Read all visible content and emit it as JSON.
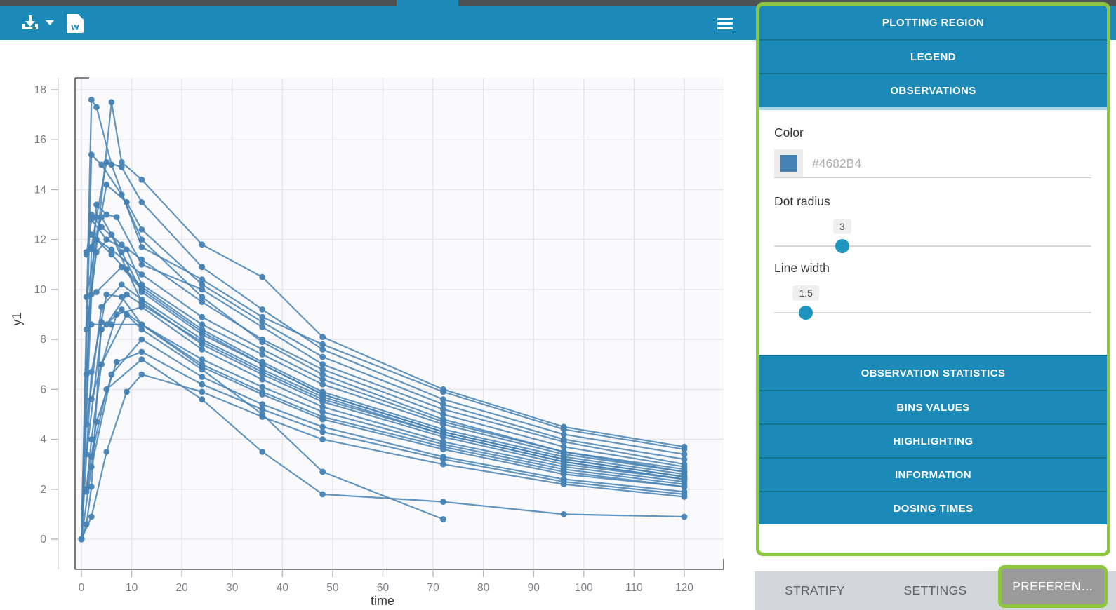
{
  "colors": {
    "accent_teal": "#1b8ab8",
    "header_separator": "#157494",
    "active_header_underline": "#a5d6e8",
    "highlight_green": "#8cc63f",
    "steel_blue": "#4682B4",
    "top_strip_gray": "#4d5154",
    "tabbar_bg": "#d3d6da",
    "selected_tab_bg": "#9b9b9b"
  },
  "toolbar": {
    "icons": [
      "download-icon",
      "caret-down-icon",
      "word-doc-icon",
      "hamburger-menu-icon"
    ],
    "word_icon_letter": "w"
  },
  "sidebar": {
    "accordion_top": [
      {
        "label": "PLOTTING REGION"
      },
      {
        "label": "LEGEND"
      },
      {
        "label": "OBSERVATIONS",
        "active": true
      }
    ],
    "observations": {
      "color_label": "Color",
      "color_placeholder": "#4682B4",
      "color_swatch": "#4682B4",
      "dot_radius_label": "Dot radius",
      "dot_radius_value": "3",
      "dot_radius_min": 0,
      "dot_radius_max": 14,
      "line_width_label": "Line width",
      "line_width_value": "1.5",
      "line_width_min": 0,
      "line_width_max": 15
    },
    "accordion_bottom": [
      {
        "label": "OBSERVATION STATISTICS"
      },
      {
        "label": "BINS VALUES"
      },
      {
        "label": "HIGHLIGHTING"
      },
      {
        "label": "INFORMATION"
      },
      {
        "label": "DOSING TIMES"
      }
    ]
  },
  "footer": {
    "tabs": [
      {
        "label": "STRATIFY",
        "selected": false
      },
      {
        "label": "SETTINGS",
        "selected": false
      },
      {
        "label": "PREFEREN…",
        "selected": true
      }
    ]
  },
  "chart_data": {
    "type": "line",
    "xlabel": "time",
    "ylabel": "y1",
    "xlim": [
      -1.3,
      127.8
    ],
    "ylim": [
      -1.2,
      18.5
    ],
    "x_ticks": [
      0,
      10,
      20,
      30,
      40,
      50,
      60,
      70,
      80,
      90,
      100,
      110,
      120
    ],
    "y_ticks": [
      0,
      2,
      4,
      6,
      8,
      10,
      12,
      14,
      16,
      18
    ],
    "grid": true,
    "legend": false,
    "series_color": "#4682B4",
    "series": [
      {
        "t": [
          0,
          2,
          3,
          6,
          12,
          24,
          36,
          48,
          72,
          96,
          120
        ],
        "y": [
          0,
          17.6,
          17.3,
          15.0,
          11.7,
          10.4,
          8.9,
          7.8,
          5.9,
          4.4,
          3.6
        ]
      },
      {
        "t": [
          0,
          2,
          6,
          8,
          12,
          24,
          36,
          48,
          72,
          96,
          120
        ],
        "y": [
          0,
          9.8,
          17.5,
          15.1,
          14.4,
          11.8,
          10.5,
          8.1,
          6.0,
          4.5,
          3.7
        ]
      },
      {
        "t": [
          1,
          3,
          5,
          7,
          12,
          24,
          36,
          48,
          72,
          96,
          120
        ],
        "y": [
          6.6,
          13.4,
          13.0,
          12.9,
          11.0,
          10.0,
          8.5,
          7.0,
          5.2,
          3.9,
          3.0
        ]
      },
      {
        "t": [
          0,
          2,
          4,
          8,
          12,
          24,
          36,
          48,
          72,
          96,
          120
        ],
        "y": [
          0,
          15.4,
          15.0,
          13.8,
          12.0,
          9.7,
          7.9,
          6.6,
          4.8,
          3.5,
          2.8
        ]
      },
      {
        "t": [
          1,
          2,
          5,
          9,
          12,
          24,
          36,
          48,
          72,
          96,
          120
        ],
        "y": [
          11.4,
          12.8,
          12.0,
          11.6,
          10.2,
          8.6,
          7.4,
          6.2,
          4.6,
          3.4,
          2.7
        ]
      },
      {
        "t": [
          0,
          2,
          4,
          8,
          12,
          24,
          36,
          48,
          72,
          96,
          120
        ],
        "y": [
          0,
          11.6,
          12.9,
          11.5,
          9.9,
          8.2,
          7.0,
          5.8,
          4.3,
          3.2,
          2.5
        ]
      },
      {
        "t": [
          1,
          3,
          6,
          9,
          12,
          24,
          36,
          48,
          72,
          96,
          120
        ],
        "y": [
          8.4,
          11.5,
          12.2,
          10.8,
          9.5,
          7.8,
          6.6,
          5.5,
          4.1,
          3.0,
          2.4
        ]
      },
      {
        "t": [
          0,
          2,
          5,
          8,
          12,
          24,
          36,
          48,
          72,
          96,
          120
        ],
        "y": [
          0,
          6.7,
          9.8,
          9.7,
          8.6,
          7.2,
          6.1,
          5.1,
          3.8,
          2.8,
          2.2
        ]
      },
      {
        "t": [
          1,
          4,
          8,
          12,
          24,
          36,
          48,
          72,
          96,
          120
        ],
        "y": [
          3.4,
          8.4,
          9.2,
          8.6,
          6.9,
          5.8,
          4.8,
          3.6,
          2.6,
          2.1
        ]
      },
      {
        "t": [
          0,
          2,
          6,
          12,
          24,
          36,
          48,
          72,
          96,
          120
        ],
        "y": [
          0,
          2.9,
          6.6,
          8.0,
          6.5,
          5.4,
          4.5,
          3.3,
          2.4,
          1.9
        ]
      },
      {
        "t": [
          1,
          3,
          7,
          12,
          24,
          36,
          48,
          72,
          96,
          120
        ],
        "y": [
          1.9,
          4.7,
          7.1,
          7.5,
          6.2,
          5.2,
          4.3,
          3.2,
          2.3,
          1.8
        ]
      },
      {
        "t": [
          0,
          2,
          5,
          9,
          12,
          24,
          36,
          48,
          72,
          96,
          120
        ],
        "y": [
          0,
          0.9,
          3.5,
          5.9,
          6.6,
          5.9,
          4.9,
          4.0,
          3.0,
          2.2,
          1.7
        ]
      },
      {
        "t": [
          2,
          4,
          8,
          12,
          24,
          36,
          48,
          72,
          96,
          120
        ],
        "y": [
          13.0,
          12.5,
          11.8,
          11.2,
          9.5,
          8.0,
          6.8,
          5.0,
          3.7,
          2.9
        ]
      },
      {
        "t": [
          1,
          3,
          6,
          12,
          24,
          36,
          48,
          72,
          96,
          120
        ],
        "y": [
          11.5,
          12.0,
          11.6,
          10.6,
          8.9,
          7.6,
          6.4,
          4.7,
          3.5,
          2.7
        ]
      },
      {
        "t": [
          2,
          5,
          9,
          12,
          24,
          36,
          48,
          72,
          96,
          120
        ],
        "y": [
          8.6,
          8.6,
          9.8,
          9.4,
          7.9,
          6.7,
          5.6,
          4.2,
          3.1,
          2.4
        ]
      },
      {
        "t": [
          1,
          4,
          8,
          12,
          24,
          36,
          48,
          72,
          96,
          120
        ],
        "y": [
          4.6,
          9.3,
          10.2,
          9.6,
          8.0,
          6.8,
          5.7,
          4.2,
          3.1,
          2.4
        ]
      },
      {
        "t": [
          2,
          6,
          12,
          24,
          36,
          48,
          72,
          96,
          120
        ],
        "y": [
          12.2,
          11.4,
          10.1,
          8.4,
          7.1,
          5.9,
          4.4,
          3.3,
          2.6
        ]
      },
      {
        "t": [
          3,
          8,
          12,
          24,
          36,
          48,
          72,
          96,
          120
        ],
        "y": [
          9.9,
          10.9,
          10.0,
          8.3,
          7.0,
          5.8,
          4.3,
          3.2,
          2.5
        ]
      },
      {
        "t": [
          1,
          2,
          4,
          9,
          12,
          24,
          36,
          48,
          72
        ],
        "y": [
          2.0,
          4.0,
          7.0,
          9.0,
          8.4,
          6.8,
          5.0,
          2.7,
          0.8
        ]
      },
      {
        "t": [
          2,
          5,
          12,
          24,
          36,
          48,
          72,
          96,
          120
        ],
        "y": [
          3.3,
          6.0,
          7.2,
          5.6,
          3.5,
          1.8,
          1.5,
          1.0,
          0.9
        ]
      },
      {
        "t": [
          1,
          2,
          3,
          5,
          8,
          12,
          24,
          36,
          48,
          72,
          96,
          120
        ],
        "y": [
          11.5,
          11.7,
          12.9,
          15.1,
          14.9,
          13.5,
          10.9,
          9.2,
          7.6,
          5.6,
          4.2,
          3.4
        ]
      },
      {
        "t": [
          0,
          1,
          2,
          4,
          6,
          12,
          24,
          36,
          48,
          72,
          96,
          120
        ],
        "y": [
          0,
          0.6,
          2.1,
          8.7,
          8.6,
          8.6,
          7.0,
          5.9,
          4.9,
          3.7,
          2.7,
          2.1
        ]
      },
      {
        "t": [
          1,
          5,
          9,
          12,
          24,
          36,
          48,
          72,
          96,
          120
        ],
        "y": [
          9.7,
          14.2,
          13.5,
          12.4,
          10.2,
          8.7,
          7.3,
          5.4,
          4.0,
          3.2
        ]
      },
      {
        "t": [
          2,
          7,
          12,
          24,
          36,
          48,
          72,
          96,
          120
        ],
        "y": [
          5.6,
          9.0,
          9.3,
          7.6,
          6.4,
          5.3,
          3.9,
          2.9,
          2.3
        ]
      }
    ]
  }
}
